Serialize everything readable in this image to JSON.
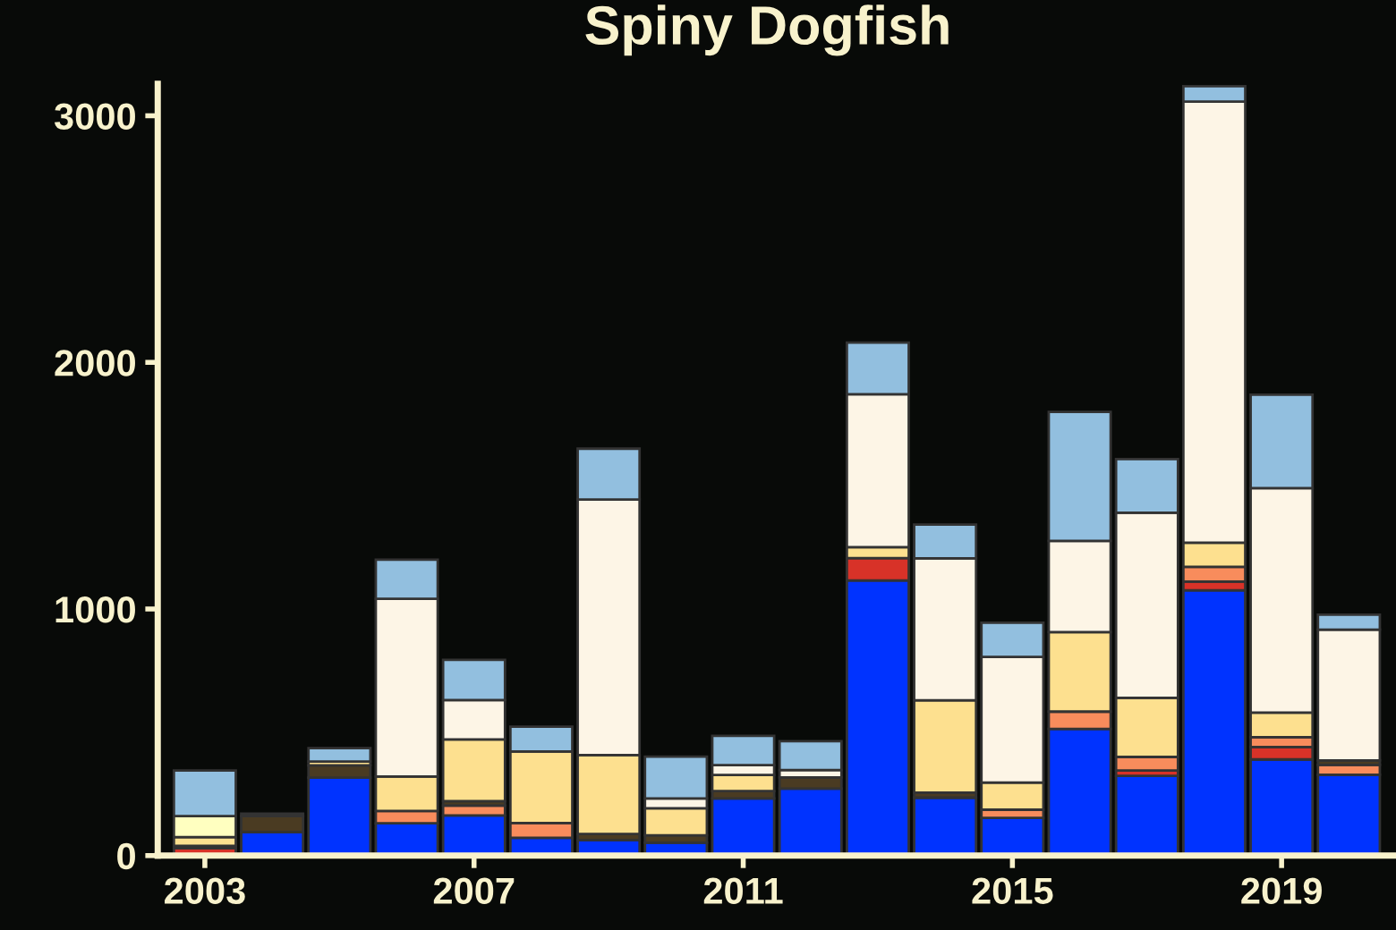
{
  "chart_data": {
    "type": "bar",
    "stacked": true,
    "title": "Spiny Dogfish",
    "x": [
      2003,
      2004,
      2005,
      2006,
      2007,
      2008,
      2009,
      2010,
      2011,
      2012,
      2013,
      2014,
      2015,
      2016,
      2017,
      2018,
      2019,
      2020
    ],
    "xlim": [
      2002.3,
      2020.7
    ],
    "xticks": [
      2003,
      2007,
      2011,
      2015,
      2019
    ],
    "ylim": [
      0,
      3130
    ],
    "yticks": [
      0,
      1000,
      2000,
      3000
    ],
    "grid": false,
    "legend": false,
    "series": [
      {
        "color": "#0033ff",
        "values": [
          0,
          95,
          316,
          131,
          163,
          72,
          63,
          52,
          232,
          272,
          1116,
          235,
          153,
          514,
          323,
          1076,
          390,
          328
        ]
      },
      {
        "color": "#d83228",
        "values": [
          30,
          0,
          0,
          0,
          0,
          0,
          0,
          0,
          0,
          0,
          90,
          0,
          0,
          0,
          22,
          35,
          50,
          0
        ]
      },
      {
        "color": "#f88c5c",
        "values": [
          0,
          0,
          0,
          50,
          40,
          60,
          0,
          0,
          0,
          0,
          0,
          0,
          33,
          70,
          55,
          60,
          40,
          40
        ]
      },
      {
        "color": "#4a3b22",
        "values": [
          10,
          65,
          50,
          0,
          18,
          0,
          25,
          30,
          30,
          45,
          0,
          20,
          0,
          0,
          0,
          0,
          0,
          18
        ]
      },
      {
        "color": "#fde08f",
        "values": [
          35,
          10,
          15,
          140,
          250,
          290,
          320,
          110,
          65,
          0,
          45,
          375,
          110,
          322,
          240,
          98,
          100,
          0
        ]
      },
      {
        "color": "#ffffc0",
        "values": [
          85,
          0,
          0,
          0,
          0,
          0,
          0,
          0,
          0,
          0,
          0,
          0,
          0,
          0,
          0,
          0,
          0,
          0
        ]
      },
      {
        "color": "#fdf5e6",
        "values": [
          0,
          0,
          0,
          720,
          160,
          0,
          1036,
          40,
          40,
          30,
          620,
          575,
          510,
          370,
          750,
          1788,
          910,
          530
        ]
      },
      {
        "color": "#92bfdf",
        "values": [
          185,
          0,
          55,
          159,
          163,
          101,
          206,
          169,
          119,
          117,
          209,
          137,
          138,
          523,
          218,
          63,
          379,
          61
        ]
      }
    ]
  }
}
